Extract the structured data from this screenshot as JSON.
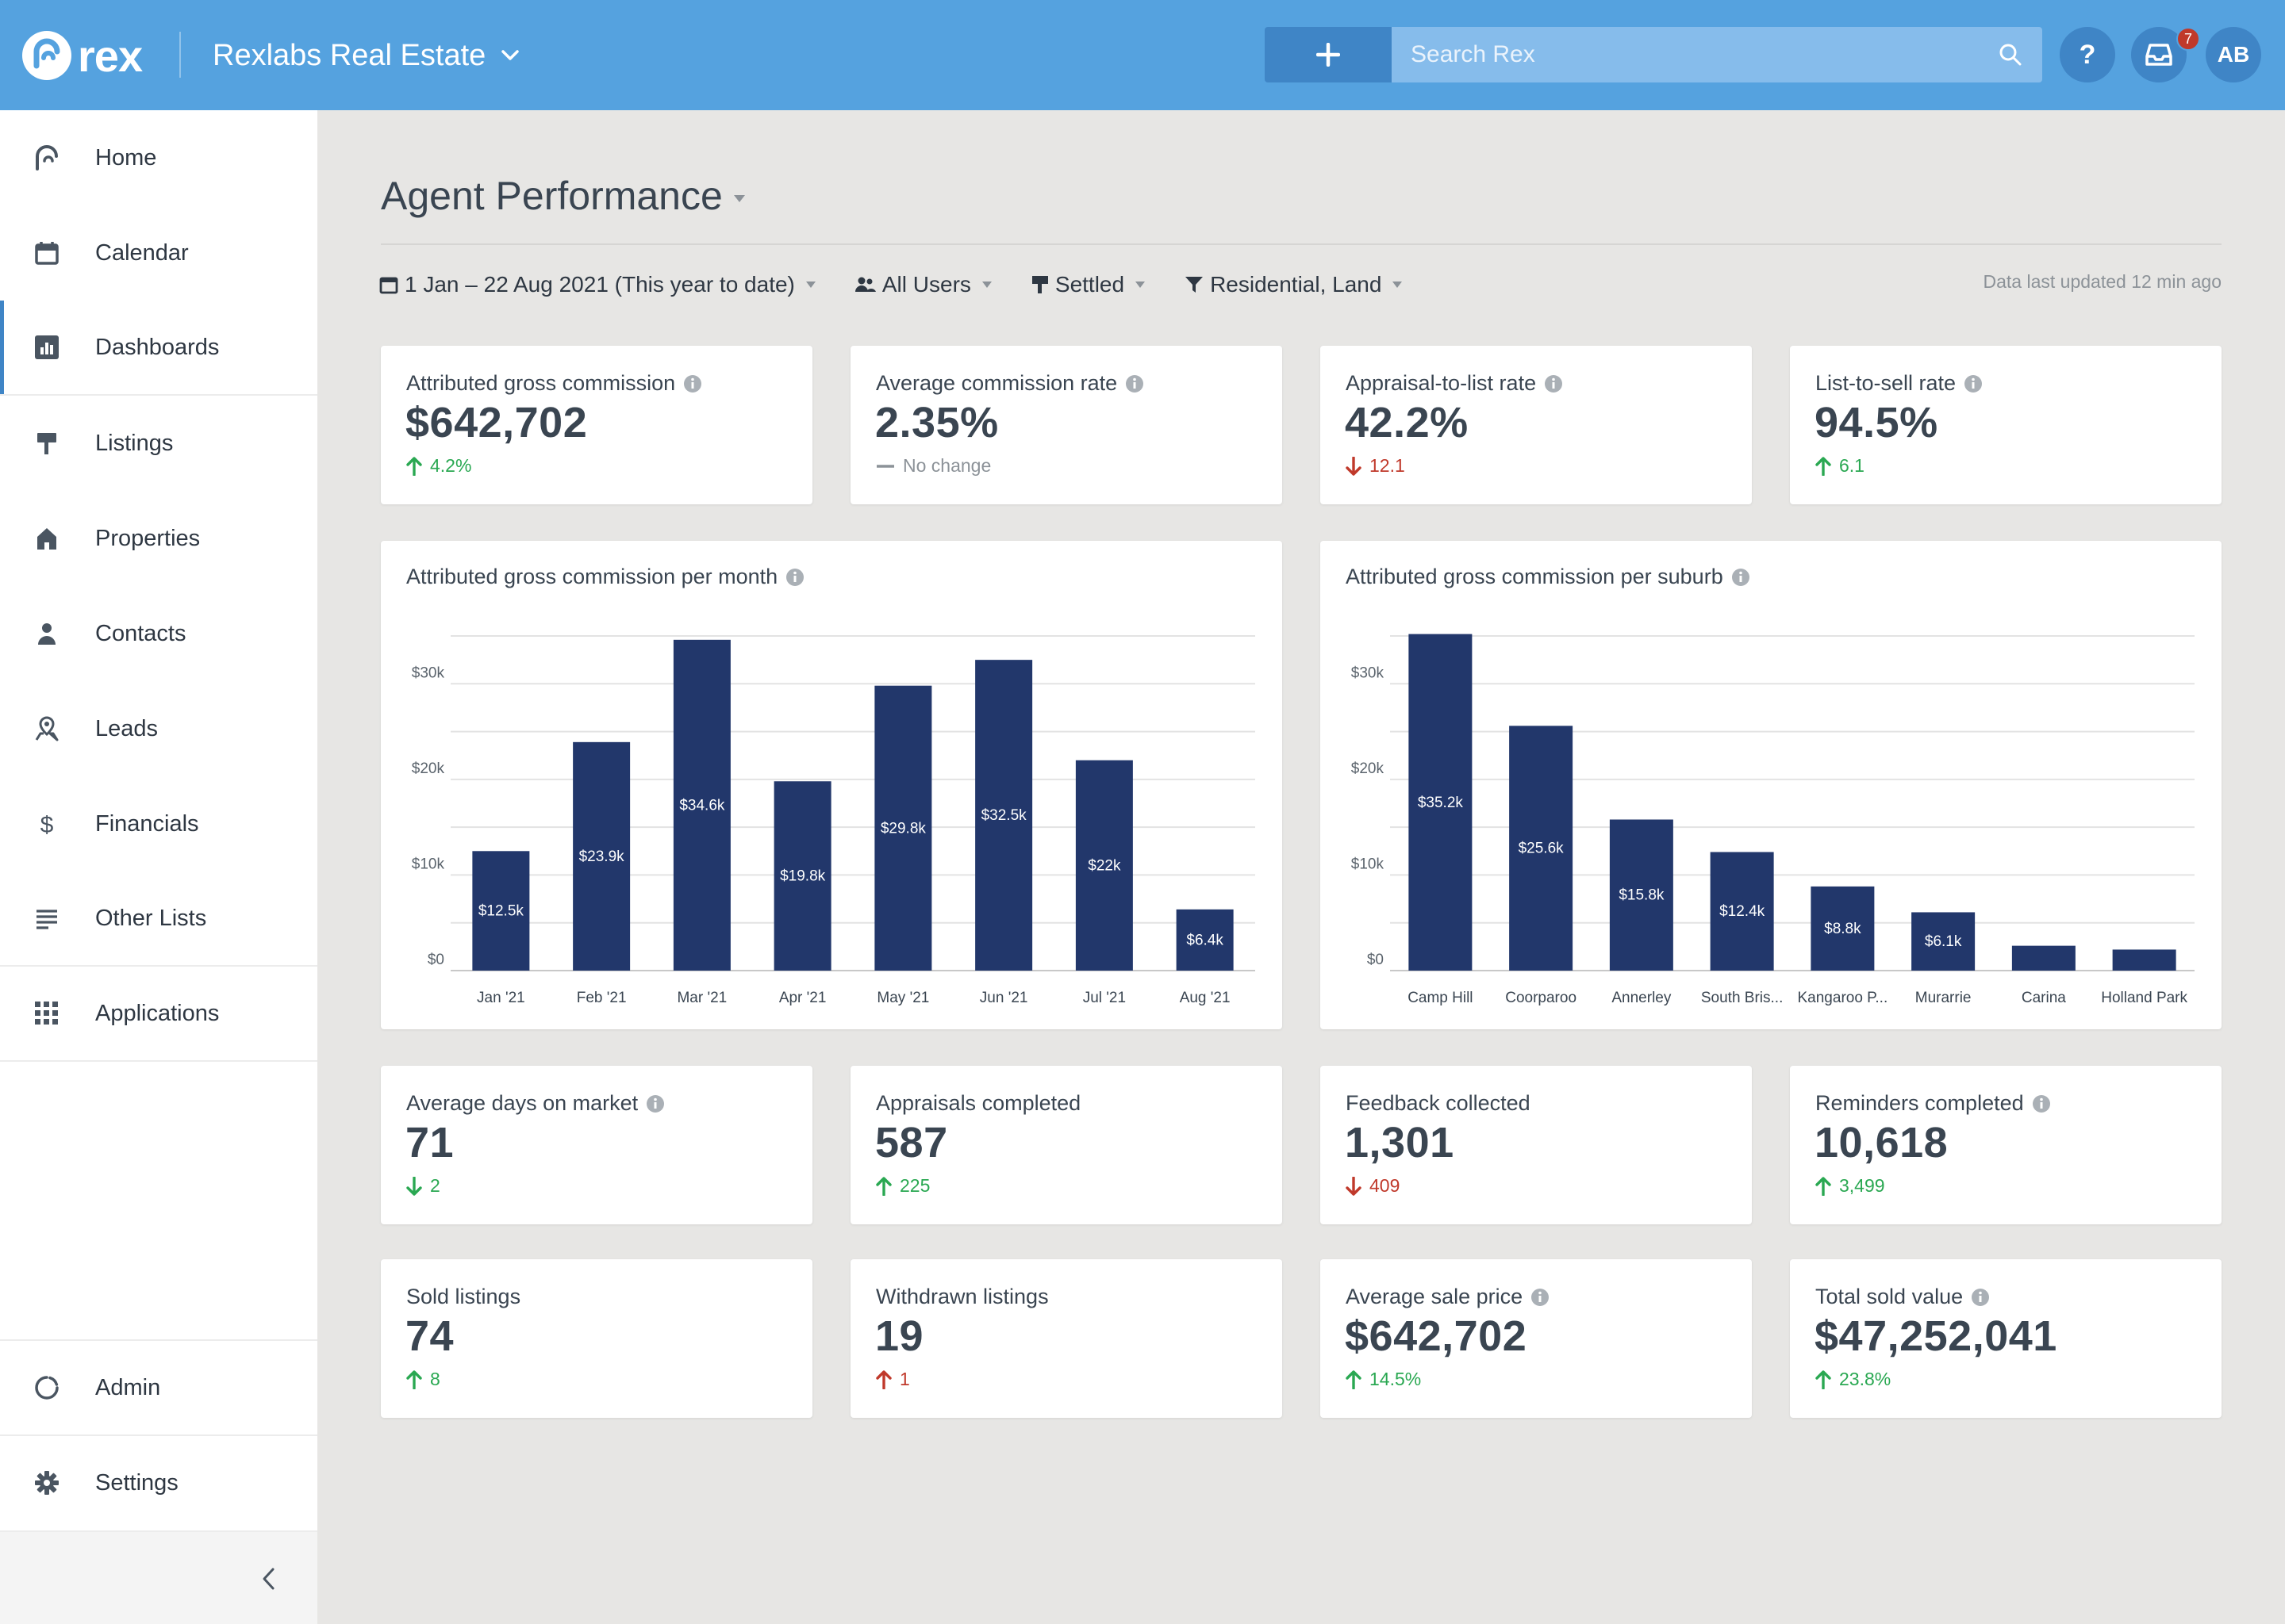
{
  "app": {
    "logo_text": "rex",
    "account_name": "Rexlabs Real Estate",
    "search_placeholder": "Search Rex",
    "notification_count": "7",
    "help_label": "?",
    "user_initials": "AB"
  },
  "sidebar": {
    "items": [
      {
        "label": "Home",
        "icon": "rex-home-icon"
      },
      {
        "label": "Calendar",
        "icon": "calendar-icon"
      },
      {
        "label": "Dashboards",
        "icon": "dashboard-chart-icon"
      },
      {
        "label": "Listings",
        "icon": "sign-post-icon"
      },
      {
        "label": "Properties",
        "icon": "house-icon"
      },
      {
        "label": "Contacts",
        "icon": "person-icon"
      },
      {
        "label": "Leads",
        "icon": "map-pin-person-icon"
      },
      {
        "label": "Financials",
        "icon": "dollar-icon"
      },
      {
        "label": "Other Lists",
        "icon": "list-icon"
      },
      {
        "label": "Applications",
        "icon": "grid-icon"
      }
    ],
    "footer_items": [
      {
        "label": "Admin",
        "icon": "admin-circle-icon"
      },
      {
        "label": "Settings",
        "icon": "gear-icon"
      }
    ],
    "active": "Dashboards"
  },
  "page": {
    "title": "Agent Performance",
    "filters": {
      "date_range": "1 Jan – 22 Aug 2021 (This year to date)",
      "users": "All Users",
      "status": "Settled",
      "types": "Residential, Land"
    },
    "updated_text": "Data last updated 12 min ago"
  },
  "kpis_top": [
    {
      "label": "Attributed gross commission",
      "value": "$642,702",
      "delta": "4.2%",
      "direction": "up",
      "info": true
    },
    {
      "label": "Average commission rate",
      "value": "2.35%",
      "delta": "No change",
      "direction": "flat",
      "info": true
    },
    {
      "label": "Appraisal-to-list rate",
      "value": "42.2%",
      "delta": "12.1",
      "direction": "down",
      "info": true
    },
    {
      "label": "List-to-sell rate",
      "value": "94.5%",
      "delta": "6.1",
      "direction": "up",
      "info": true
    }
  ],
  "kpis_mid": [
    {
      "label": "Average days on market",
      "value": "71",
      "delta": "2",
      "direction": "down-good",
      "info": true
    },
    {
      "label": "Appraisals completed",
      "value": "587",
      "delta": "225",
      "direction": "up",
      "info": false
    },
    {
      "label": "Feedback collected",
      "value": "1,301",
      "delta": "409",
      "direction": "down",
      "info": false
    },
    {
      "label": "Reminders completed",
      "value": "10,618",
      "delta": "3,499",
      "direction": "up",
      "info": true
    }
  ],
  "kpis_bottom": [
    {
      "label": "Sold listings",
      "value": "74",
      "delta": "8",
      "direction": "up",
      "info": false
    },
    {
      "label": "Withdrawn listings",
      "value": "19",
      "delta": "1",
      "direction": "up-bad",
      "info": false
    },
    {
      "label": "Average sale price",
      "value": "$642,702",
      "delta": "14.5%",
      "direction": "up",
      "info": true
    },
    {
      "label": "Total sold value",
      "value": "$47,252,041",
      "delta": "23.8%",
      "direction": "up",
      "info": true
    }
  ],
  "colors": {
    "topbar": "#55a2df",
    "accent": "#3f85c6",
    "bar": "#22376b",
    "positive": "#2aa852",
    "negative": "#c0392b"
  },
  "chart_data": [
    {
      "type": "bar",
      "title": "Attributed gross commission per month",
      "categories": [
        "Jan '21",
        "Feb '21",
        "Mar '21",
        "Apr '21",
        "May '21",
        "Jun '21",
        "Jul '21",
        "Aug '21"
      ],
      "values": [
        12500,
        23900,
        34600,
        19800,
        29800,
        32500,
        22000,
        6400
      ],
      "data_labels": [
        "$12.5k",
        "$23.9k",
        "$34.6k",
        "$19.8k",
        "$29.8k",
        "$32.5k",
        "$22k",
        "$6.4k"
      ],
      "yticks": [
        "$0",
        "$10k",
        "$20k",
        "$30k"
      ],
      "ylim": [
        0,
        35000
      ],
      "grid": true
    },
    {
      "type": "bar",
      "title": "Attributed gross commission per suburb",
      "categories": [
        "Camp Hill",
        "Coorparoo",
        "Annerley",
        "South Bris...",
        "Kangaroo P...",
        "Murarrie",
        "Carina",
        "Holland Park"
      ],
      "values": [
        35200,
        25600,
        15800,
        12400,
        8800,
        6100,
        2600,
        2200
      ],
      "data_labels": [
        "$35.2k",
        "$25.6k",
        "$15.8k",
        "$12.4k",
        "$8.8k",
        "$6.1k",
        "",
        ""
      ],
      "yticks": [
        "$0",
        "$10k",
        "$20k",
        "$30k"
      ],
      "ylim": [
        0,
        35000
      ],
      "grid": true
    }
  ]
}
